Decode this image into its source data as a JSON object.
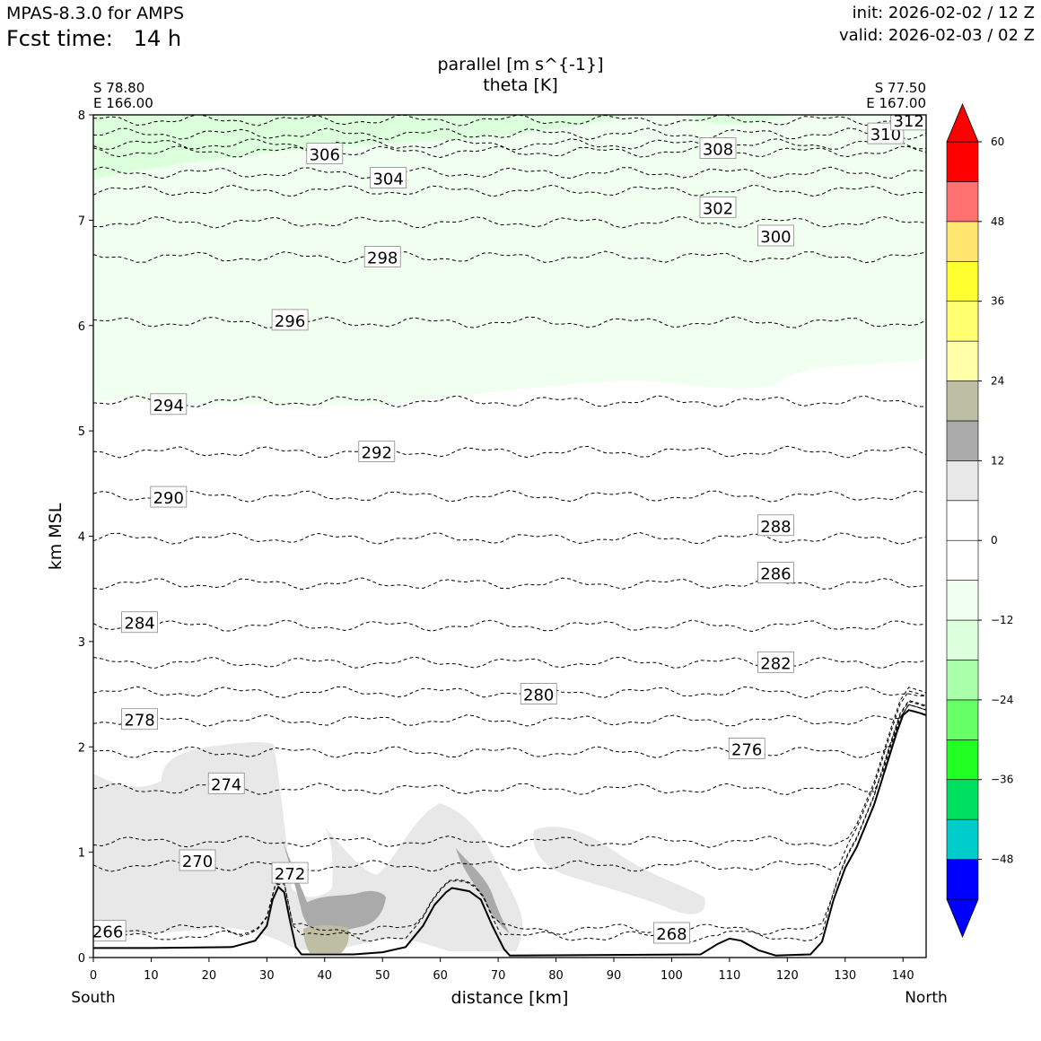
{
  "header": {
    "model": "MPAS-8.3.0 for AMPS",
    "fcst_label": "Fcst time:",
    "fcst_value": "14 h",
    "init": "init: 2026-02-02 / 12 Z",
    "valid": "valid: 2026-02-03 / 02 Z"
  },
  "chart_data": {
    "type": "cross-section",
    "title_line1": "parallel [m s^{-1}]",
    "title_line2": "theta [K]",
    "xlabel": "distance [km]",
    "ylabel": "km MSL",
    "xlim": [
      0,
      144
    ],
    "ylim": [
      0,
      8
    ],
    "xticks": [
      "0",
      "10",
      "20",
      "30",
      "40",
      "50",
      "60",
      "70",
      "80",
      "90",
      "100",
      "110",
      "120",
      "130",
      "140"
    ],
    "yticks": [
      "0",
      "1",
      "2",
      "3",
      "4",
      "5",
      "6",
      "7",
      "8"
    ],
    "left_end": {
      "lat": "S 78.80",
      "lon": "E 166.00",
      "name": "South"
    },
    "right_end": {
      "lat": "S 77.50",
      "lon": "E 167.00",
      "name": "North"
    },
    "colorbar": {
      "ticks": [
        "60",
        "48",
        "36",
        "24",
        "12",
        "0",
        "−12",
        "−24",
        "−36",
        "−48"
      ],
      "tick_values": [
        60,
        48,
        36,
        24,
        12,
        0,
        -12,
        -24,
        -36,
        -48
      ],
      "levels": [
        -54,
        -48,
        -42,
        -36,
        -30,
        -24,
        -18,
        -12,
        -6,
        0,
        6,
        12,
        18,
        24,
        30,
        36,
        42,
        48,
        54,
        60
      ],
      "colors": [
        "#0000ff",
        "#00cccc",
        "#00e060",
        "#22ff22",
        "#66ff66",
        "#aaffaa",
        "#dcffdc",
        "#f0fff0",
        "#ffffff",
        "#ffffff",
        "#e8e8e8",
        "#aaaaaa",
        "#bebea4",
        "#ffffa8",
        "#ffff70",
        "#ffff30",
        "#ffe670",
        "#ff7070",
        "#ff0000"
      ],
      "extend_low": "#0000ff",
      "extend_high": "#ff0000"
    },
    "terrain_km": [
      [
        0,
        0.09
      ],
      [
        10,
        0.09
      ],
      [
        24,
        0.1
      ],
      [
        28,
        0.16
      ],
      [
        30,
        0.3
      ],
      [
        31,
        0.55
      ],
      [
        32,
        0.67
      ],
      [
        33,
        0.62
      ],
      [
        34,
        0.35
      ],
      [
        35,
        0.1
      ],
      [
        36,
        0.03
      ],
      [
        45,
        0.03
      ],
      [
        50,
        0.05
      ],
      [
        54,
        0.1
      ],
      [
        57,
        0.3
      ],
      [
        59,
        0.5
      ],
      [
        61,
        0.62
      ],
      [
        62,
        0.66
      ],
      [
        65,
        0.63
      ],
      [
        67,
        0.55
      ],
      [
        69,
        0.3
      ],
      [
        71,
        0.08
      ],
      [
        72,
        0.02
      ],
      [
        105,
        0.03
      ],
      [
        108,
        0.13
      ],
      [
        110,
        0.18
      ],
      [
        112,
        0.16
      ],
      [
        115,
        0.07
      ],
      [
        118,
        0.02
      ],
      [
        124,
        0.03
      ],
      [
        126,
        0.15
      ],
      [
        128,
        0.55
      ],
      [
        130,
        0.85
      ],
      [
        132,
        1.05
      ],
      [
        135,
        1.45
      ],
      [
        137,
        1.8
      ],
      [
        139,
        2.15
      ],
      [
        140,
        2.3
      ],
      [
        141,
        2.35
      ],
      [
        143,
        2.32
      ],
      [
        144,
        2.3
      ]
    ],
    "theta_contours": [
      {
        "label": "266",
        "km": 0.2,
        "label_km": 0.25,
        "label_x": 2.5
      },
      {
        "label": "268",
        "km": 0.27,
        "label_km": 0.23,
        "label_x": 100
      },
      {
        "label": "270",
        "km": 0.87,
        "label_km": 0.92,
        "label_x": 18
      },
      {
        "label": "272",
        "km": 1.1,
        "label_km": 0.8,
        "label_x": 34
      },
      {
        "label": "274",
        "km": 1.6,
        "label_km": 1.65,
        "label_x": 23
      },
      {
        "label": "276",
        "km": 1.95,
        "label_km": 1.98,
        "label_x": 113
      },
      {
        "label": "278",
        "km": 2.25,
        "label_km": 2.26,
        "label_x": 8
      },
      {
        "label": "280",
        "km": 2.52,
        "label_km": 2.5,
        "label_x": 77
      },
      {
        "label": "282",
        "km": 2.8,
        "label_km": 2.8,
        "label_x": 118
      },
      {
        "label": "284",
        "km": 3.15,
        "label_km": 3.18,
        "label_x": 8
      },
      {
        "label": "286",
        "km": 3.55,
        "label_km": 3.65,
        "label_x": 118
      },
      {
        "label": "288",
        "km": 3.98,
        "label_km": 4.1,
        "label_x": 118
      },
      {
        "label": "290",
        "km": 4.38,
        "label_km": 4.37,
        "label_x": 13
      },
      {
        "label": "292",
        "km": 4.8,
        "label_km": 4.8,
        "label_x": 49
      },
      {
        "label": "294",
        "km": 5.28,
        "label_km": 5.25,
        "label_x": 13
      },
      {
        "label": "296",
        "km": 6.03,
        "label_km": 6.05,
        "label_x": 34
      },
      {
        "label": "298",
        "km": 6.65,
        "label_km": 6.65,
        "label_x": 50
      },
      {
        "label": "300",
        "km": 6.98,
        "label_km": 6.85,
        "label_x": 118
      },
      {
        "label": "302",
        "km": 7.28,
        "label_km": 7.12,
        "label_x": 108
      },
      {
        "label": "304",
        "km": 7.45,
        "label_km": 7.4,
        "label_x": 51
      },
      {
        "label": "306",
        "km": 7.65,
        "label_km": 7.63,
        "label_x": 40
      },
      {
        "label": "308",
        "km": 7.72,
        "label_km": 7.68,
        "label_x": 108
      },
      {
        "label": "310",
        "km": 7.82,
        "label_km": 7.82,
        "label_x": 137
      },
      {
        "label": "312",
        "km": 7.95,
        "label_km": 7.95,
        "label_x": 141
      }
    ]
  }
}
